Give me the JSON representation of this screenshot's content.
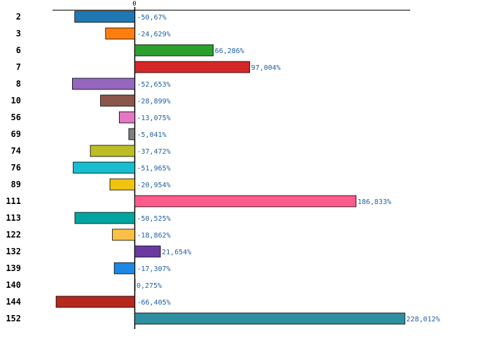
{
  "chart_data": {
    "type": "bar",
    "orientation": "horizontal",
    "categories": [
      "2",
      "3",
      "6",
      "7",
      "8",
      "10",
      "56",
      "69",
      "74",
      "76",
      "89",
      "111",
      "113",
      "122",
      "132",
      "139",
      "140",
      "144",
      "152"
    ],
    "values": [
      -50.67,
      -24.629,
      66.286,
      97.004,
      -52.653,
      -28.899,
      -13.075,
      -5.041,
      -37.472,
      -51.965,
      -20.954,
      186.833,
      -50.525,
      -18.862,
      21.654,
      -17.307,
      0.275,
      -66.405,
      228.012
    ],
    "value_labels": [
      "-50,67%",
      "-24,629%",
      "66,286%",
      "97,004%",
      "-52,653%",
      "-28,899%",
      "-13,075%",
      "-5,041%",
      "-37,472%",
      "-51,965%",
      "-20,954%",
      "186,833%",
      "-50,525%",
      "-18,862%",
      "21,654%",
      "-17,307%",
      "0,275%",
      "-66,405%",
      "228,012%"
    ],
    "colors": [
      "#1f77b4",
      "#ff7f0e",
      "#2ca02c",
      "#d62728",
      "#9467bd",
      "#8c564b",
      "#e377c2",
      "#7f7f7f",
      "#bcbd22",
      "#17becf",
      "#f1c40f",
      "#ff5a8c",
      "#00a5a0",
      "#fbbf45",
      "#6b3a9e",
      "#1e88e5",
      "#b0e0e6",
      "#b5291c",
      "#2e8fa0"
    ],
    "zero_tick_label": "0",
    "grid": false,
    "legend": "none"
  }
}
